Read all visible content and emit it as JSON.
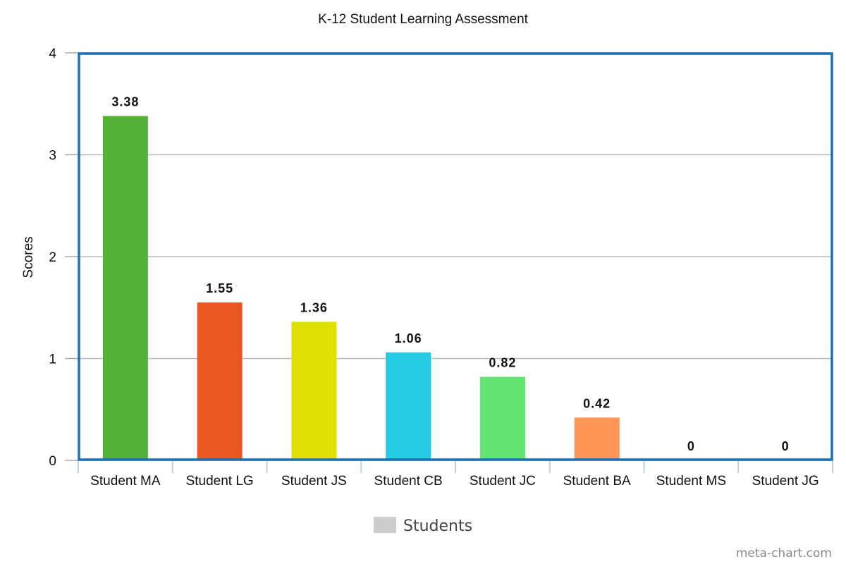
{
  "chart_data": {
    "type": "bar",
    "title": "K-12 Student Learning Assessment",
    "xlabel": "",
    "ylabel": "Scores",
    "ylim": [
      0,
      4
    ],
    "yticks": [
      0,
      1,
      2,
      3,
      4
    ],
    "grid": true,
    "legend_position": "bottom",
    "categories": [
      "Student MA",
      "Student LG",
      "Student JS",
      "Student CB",
      "Student JC",
      "Student BA",
      "Student MS",
      "Student JG"
    ],
    "series": [
      {
        "name": "Students",
        "values": [
          3.38,
          1.55,
          1.36,
          1.06,
          0.82,
          0.42,
          0,
          0
        ],
        "colors": [
          "#52b236",
          "#ea5720",
          "#dde000",
          "#25cbe3",
          "#63e370",
          "#fe9657",
          "#888888",
          "#888888"
        ]
      }
    ],
    "legend_color": "#cccccc",
    "frame_color": "#1a6fb8"
  },
  "watermark": "meta-chart.com"
}
